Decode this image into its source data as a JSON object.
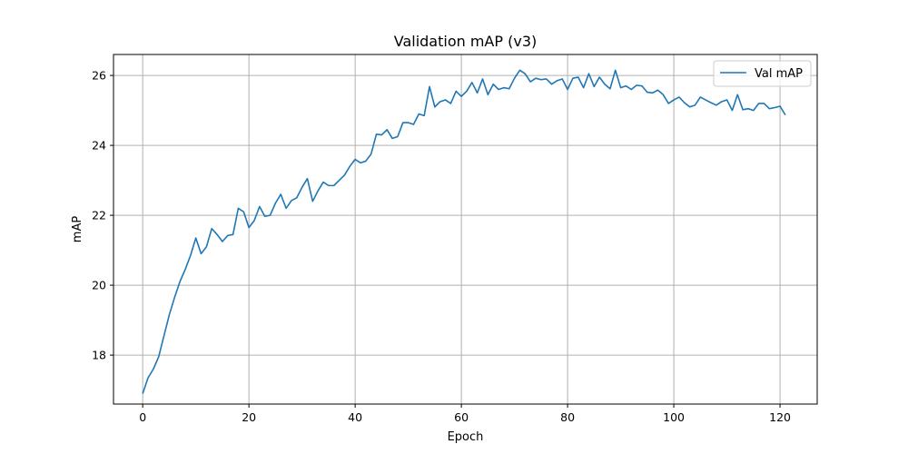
{
  "chart_data": {
    "type": "line",
    "title": "Validation mAP (v3)",
    "xlabel": "Epoch",
    "ylabel": "mAP",
    "xlim": [
      -5.5,
      127
    ],
    "ylim": [
      16.6,
      26.6
    ],
    "xticks": [
      0,
      20,
      40,
      60,
      80,
      100,
      120
    ],
    "yticks": [
      18,
      20,
      22,
      24,
      26
    ],
    "grid": true,
    "legend_position": "top-right",
    "series": [
      {
        "name": "Val mAP",
        "color": "#1f77b4",
        "x": [
          0,
          1,
          2,
          3,
          4,
          5,
          6,
          7,
          8,
          9,
          10,
          11,
          12,
          13,
          14,
          15,
          16,
          17,
          18,
          19,
          20,
          21,
          22,
          23,
          24,
          25,
          26,
          27,
          28,
          29,
          30,
          31,
          32,
          33,
          34,
          35,
          36,
          37,
          38,
          39,
          40,
          41,
          42,
          43,
          44,
          45,
          46,
          47,
          48,
          49,
          50,
          51,
          52,
          53,
          54,
          55,
          56,
          57,
          58,
          59,
          60,
          61,
          62,
          63,
          64,
          65,
          66,
          67,
          68,
          69,
          70,
          71,
          72,
          73,
          74,
          75,
          76,
          77,
          78,
          79,
          80,
          81,
          82,
          83,
          84,
          85,
          86,
          87,
          88,
          89,
          90,
          91,
          92,
          93,
          94,
          95,
          96,
          97,
          98,
          99,
          100,
          101,
          102,
          103,
          104,
          105,
          106,
          107,
          108,
          109,
          110,
          111,
          112,
          113,
          114,
          115,
          116,
          117,
          118,
          119,
          120,
          121
        ],
        "values": [
          16.9,
          17.35,
          17.6,
          17.95,
          18.55,
          19.15,
          19.65,
          20.1,
          20.45,
          20.85,
          21.35,
          20.9,
          21.1,
          21.62,
          21.45,
          21.25,
          21.42,
          21.45,
          22.2,
          22.1,
          21.65,
          21.85,
          22.25,
          21.97,
          22.0,
          22.35,
          22.6,
          22.2,
          22.42,
          22.5,
          22.8,
          23.05,
          22.4,
          22.7,
          22.95,
          22.85,
          22.85,
          23.0,
          23.15,
          23.4,
          23.6,
          23.5,
          23.55,
          23.75,
          24.32,
          24.3,
          24.45,
          24.2,
          24.25,
          24.65,
          24.65,
          24.6,
          24.9,
          24.85,
          25.68,
          25.1,
          25.25,
          25.3,
          25.2,
          25.55,
          25.4,
          25.55,
          25.8,
          25.5,
          25.9,
          25.45,
          25.75,
          25.6,
          25.65,
          25.62,
          25.92,
          26.15,
          26.05,
          25.82,
          25.92,
          25.88,
          25.9,
          25.75,
          25.85,
          25.9,
          25.6,
          25.92,
          25.95,
          25.65,
          26.05,
          25.68,
          25.95,
          25.75,
          25.62,
          26.15,
          25.65,
          25.7,
          25.6,
          25.72,
          25.7,
          25.52,
          25.5,
          25.58,
          25.45,
          25.2,
          25.3,
          25.38,
          25.22,
          25.1,
          25.15,
          25.38,
          25.3,
          25.22,
          25.15,
          25.25,
          25.3,
          25.0,
          25.45,
          25.02,
          25.05,
          25.0,
          25.2,
          25.2,
          25.05,
          25.08,
          25.12,
          24.87
        ]
      }
    ]
  }
}
